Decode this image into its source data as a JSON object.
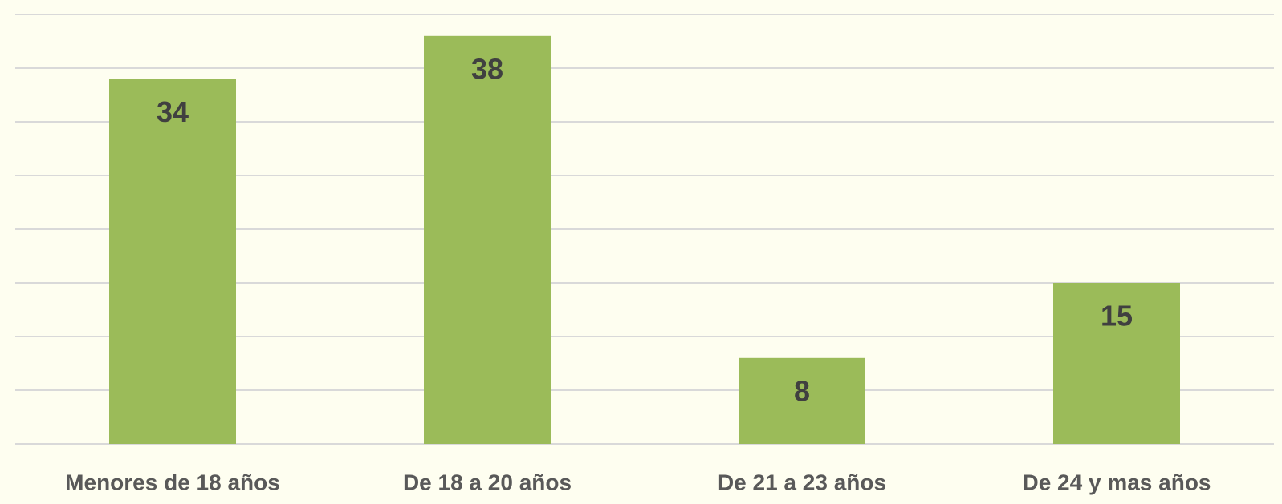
{
  "chart_data": {
    "type": "bar",
    "categories": [
      "Menores de 18 años",
      "De 18 a 20 años",
      "De 21 a 23 años",
      "De 24 y mas años"
    ],
    "values": [
      34,
      38,
      8,
      15
    ],
    "color": "#9bbb59",
    "ylim": [
      0,
      40
    ],
    "yticks": [
      0,
      5,
      10,
      15,
      20,
      25,
      30,
      35,
      40
    ],
    "grid": true
  }
}
